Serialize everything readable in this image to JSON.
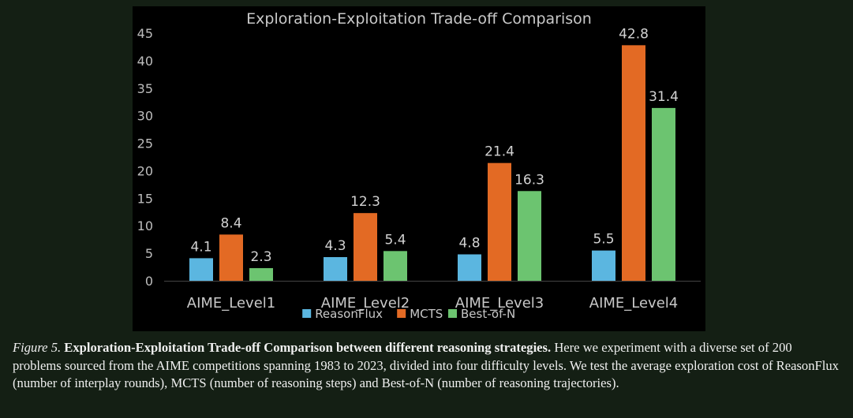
{
  "chart_data": {
    "type": "bar",
    "title": "Exploration-Exploitation Trade-off Comparison",
    "categories": [
      "AIME_Level1",
      "AIME_Level2",
      "AIME_Level3",
      "AIME_Level4"
    ],
    "series": [
      {
        "name": "ReasonFlux",
        "values": [
          4.1,
          4.3,
          4.8,
          5.5
        ],
        "color": "#5bb6e0"
      },
      {
        "name": "MCTS",
        "values": [
          8.4,
          12.3,
          21.4,
          42.8
        ],
        "color": "#e36a24"
      },
      {
        "name": "Best-of-N",
        "values": [
          2.3,
          5.4,
          16.3,
          31.4
        ],
        "color": "#6cc470"
      }
    ],
    "yticks": [
      "0",
      "5",
      "10",
      "15",
      "20",
      "25",
      "30",
      "35",
      "40",
      "45"
    ],
    "ylim": [
      0,
      45
    ],
    "xlabel": "",
    "ylabel": "",
    "grid": false,
    "legend": "bottom"
  },
  "caption": {
    "label": "Figure 5.",
    "bold": "Exploration-Exploitation Trade-off Comparison between different reasoning strategies.",
    "text": "Here we experiment with a diverse set of 200 problems sourced from the AIME competitions spanning 1983 to 2023, divided into four difficulty levels. We test the average exploration cost of ReasonFlux (number of interplay rounds), MCTS (number of reasoning steps) and Best-of-N (number of reasoning trajectories)."
  }
}
